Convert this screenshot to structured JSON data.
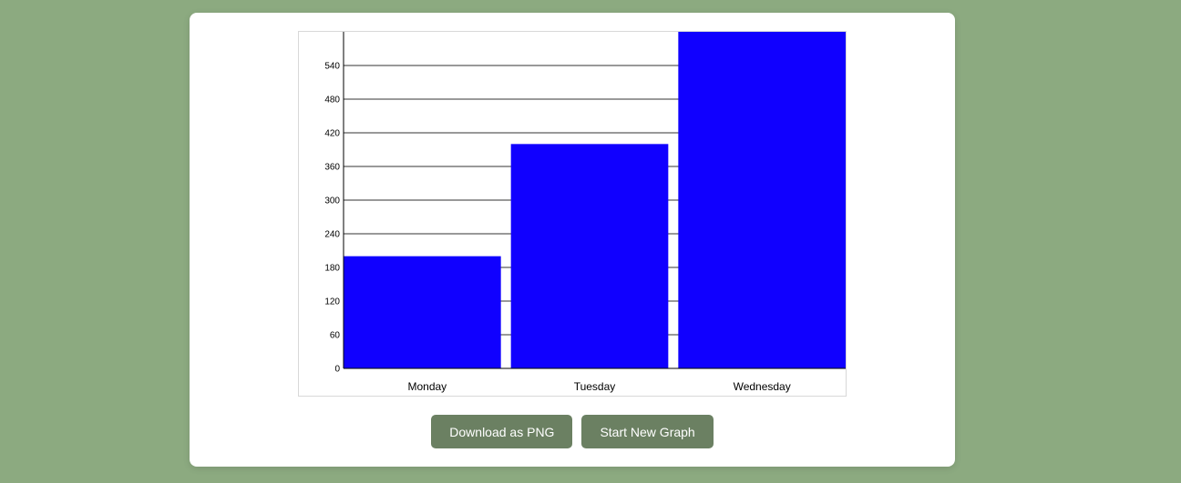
{
  "chart_data": {
    "type": "bar",
    "categories": [
      "Monday",
      "Tuesday",
      "Wednesday"
    ],
    "values": [
      200,
      400,
      600
    ],
    "yticks": [
      0,
      60,
      120,
      180,
      240,
      300,
      360,
      420,
      480,
      540
    ],
    "ylim": [
      0,
      600
    ],
    "grid": true,
    "bar_color": "#1000ff",
    "title": "",
    "xlabel": "",
    "ylabel": ""
  },
  "actions": {
    "download_label": "Download as PNG",
    "new_graph_label": "Start New Graph"
  }
}
